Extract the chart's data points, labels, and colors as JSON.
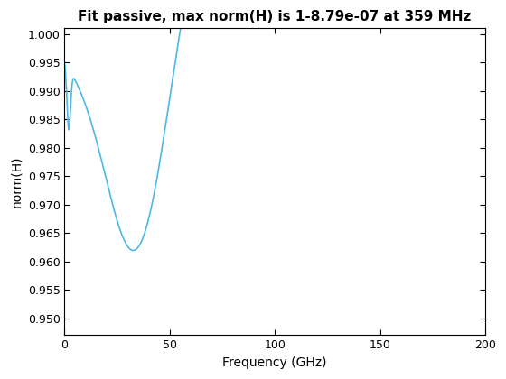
{
  "title": "Fit passive, max norm(H) is 1-8.79e-07 at 359 MHz",
  "xlabel": "Frequency (GHz)",
  "ylabel": "norm(H)",
  "xlim": [
    0,
    200
  ],
  "ylim": [
    0.947,
    1.001
  ],
  "yticks": [
    0.95,
    0.955,
    0.96,
    0.965,
    0.97,
    0.975,
    0.98,
    0.985,
    0.99,
    0.995,
    1.0
  ],
  "xticks": [
    0,
    50,
    100,
    150,
    200
  ],
  "line_color": "#4db8e8",
  "background_color": "#ffffff",
  "title_fontsize": 11,
  "label_fontsize": 10,
  "tick_fontsize": 9
}
